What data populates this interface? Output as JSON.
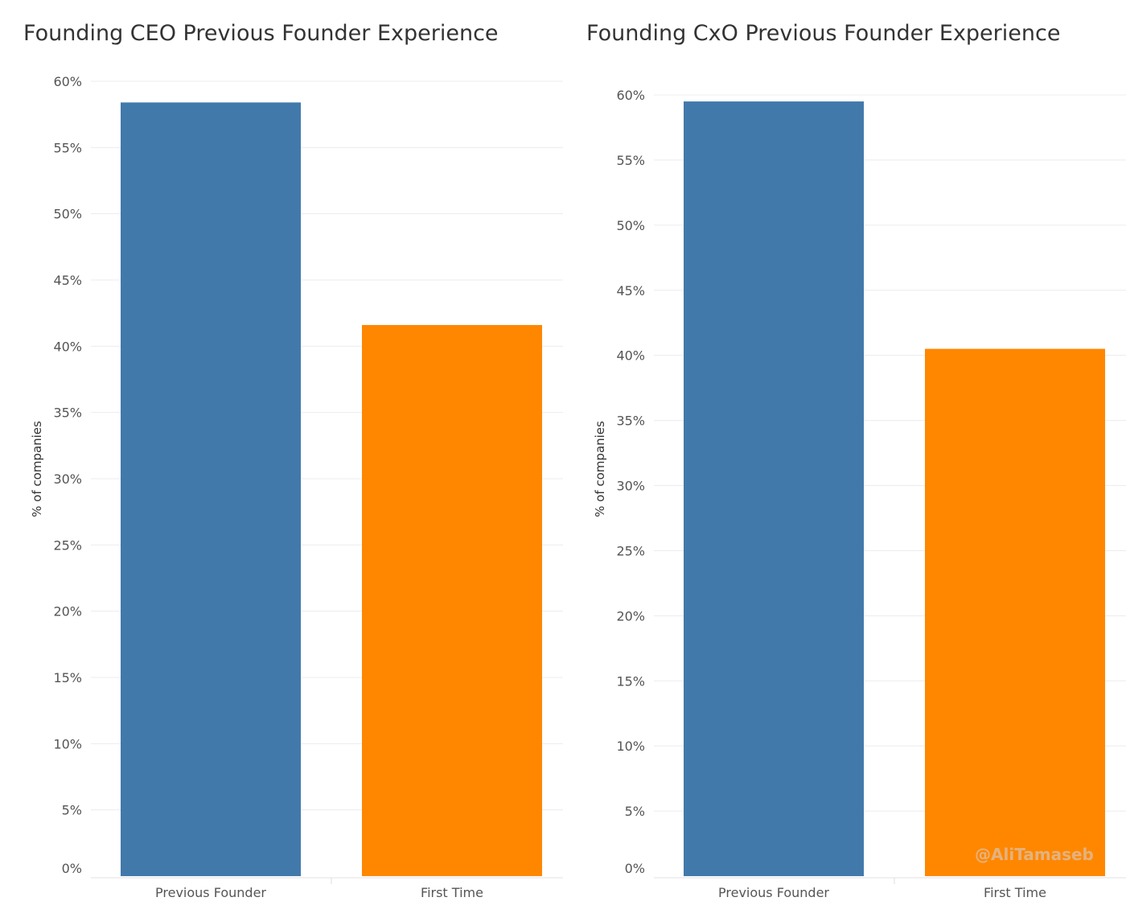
{
  "chart_data": [
    {
      "type": "bar",
      "title": "Founding CEO Previous Founder Experience",
      "ylabel": "% of companies",
      "xlabel": "",
      "categories": [
        "Previous Founder",
        "First Time"
      ],
      "values": [
        58.4,
        41.6
      ],
      "colors": [
        "#4279ab",
        "#ff8700"
      ],
      "ylim": [
        0,
        60
      ],
      "yticks": [
        0,
        5,
        10,
        15,
        20,
        25,
        30,
        35,
        40,
        45,
        50,
        55,
        60
      ],
      "ytick_labels": [
        "0%",
        "5%",
        "10%",
        "15%",
        "20%",
        "25%",
        "30%",
        "35%",
        "40%",
        "45%",
        "50%",
        "55%",
        "60%"
      ],
      "grid": true
    },
    {
      "type": "bar",
      "title": "Founding CxO Previous Founder Experience",
      "ylabel": "% of companies",
      "xlabel": "",
      "categories": [
        "Previous Founder",
        "First Time"
      ],
      "values": [
        59.5,
        40.5
      ],
      "colors": [
        "#4279ab",
        "#ff8700"
      ],
      "ylim": [
        0,
        60
      ],
      "yticks": [
        0,
        5,
        10,
        15,
        20,
        25,
        30,
        35,
        40,
        45,
        50,
        55,
        60
      ],
      "ytick_labels": [
        "0%",
        "5%",
        "10%",
        "15%",
        "20%",
        "25%",
        "30%",
        "35%",
        "40%",
        "45%",
        "50%",
        "55%",
        "60%"
      ],
      "grid": true
    }
  ],
  "watermark": "@AliTamaseb"
}
